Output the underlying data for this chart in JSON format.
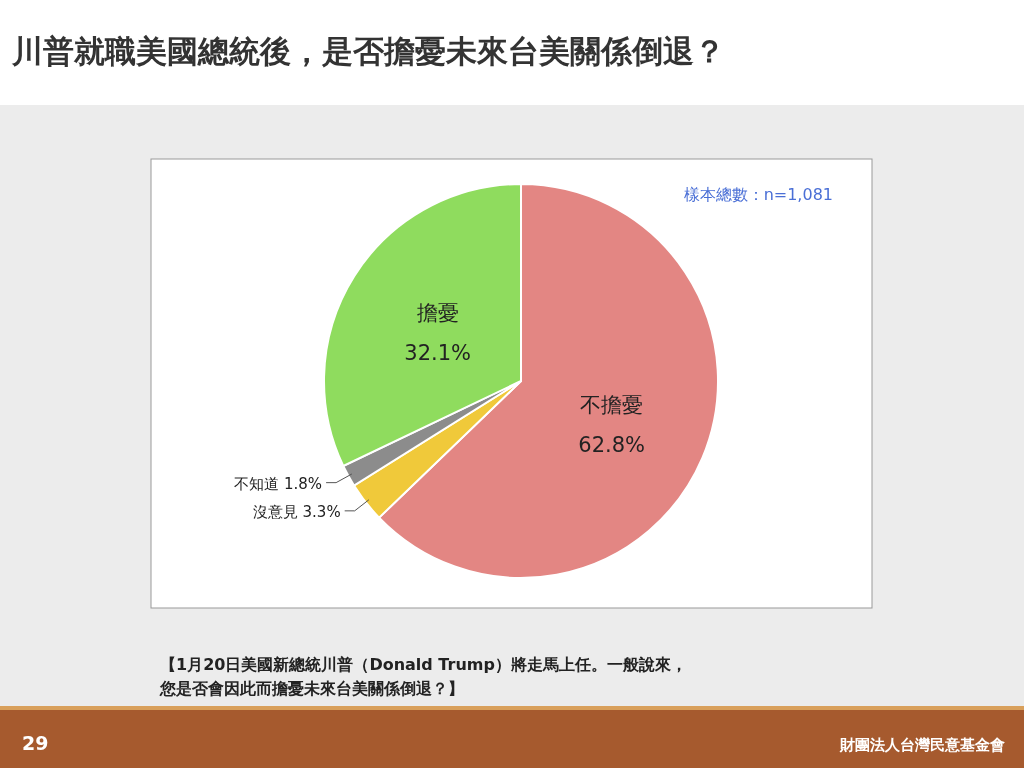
{
  "chart_data": {
    "type": "pie",
    "title": "川普就職美國總統後，是否擔憂未來台美關係倒退？",
    "categories": [
      "不擔憂",
      "沒意見",
      "不知道",
      "擔憂"
    ],
    "values": [
      62.8,
      3.3,
      1.8,
      32.1
    ],
    "colors": [
      "#e38683",
      "#f0c93a",
      "#8c8c8c",
      "#8fdc5e"
    ],
    "value_labels": [
      "62.8%",
      "3.3%",
      "1.8%",
      "32.1%"
    ],
    "annotations": [
      "樣本總數：n=1,081",
      "【1月20日美國新總統川普（Donald Trump）將走馬上任。一般說來，您是否會因此而擔憂未來台美關係倒退？】",
      "29",
      "財團法人台灣民意基金會"
    ]
  }
}
